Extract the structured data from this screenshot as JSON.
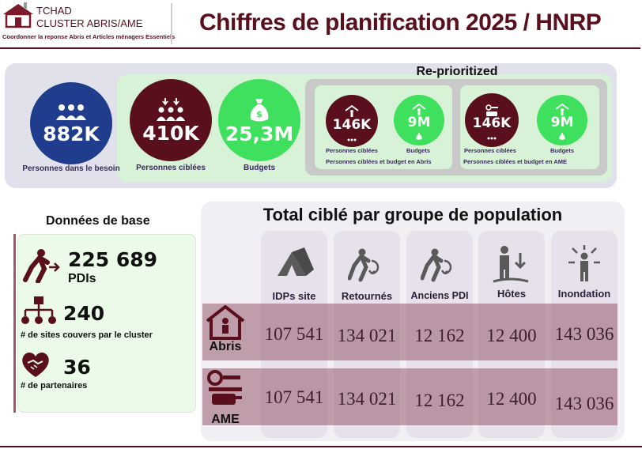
{
  "header": {
    "org_line1": "TCHAD",
    "org_line2": "CLUSTER ABRIS/AME",
    "org_tagline": "Coordonner la reponse Abris et Articles ménagers Essentiels",
    "title": "Chiffres de planification 2025 / HNRP"
  },
  "summary": {
    "in_need": {
      "value": "882K",
      "label": "Personnes dans le besoin",
      "icon": "people-group-icon"
    },
    "targeted": {
      "value": "410K",
      "label": "Personnes ciblées",
      "icon": "people-arrows-icon"
    },
    "budget": {
      "value": "25,3M",
      "label": "Budgets",
      "icon": "money-bag-icon"
    }
  },
  "reprioritized": {
    "title": "Re-prioritized",
    "abris": {
      "targeted_value": "146K",
      "targeted_label": "Personnes ciblées",
      "budget_value": "9M",
      "budget_label": "Budgets",
      "footer": "Personnes ciblées et budget en Abris"
    },
    "ame": {
      "targeted_value": "146K",
      "targeted_label": "Personnes ciblées",
      "budget_value": "9M",
      "budget_label": "Budgets",
      "footer": "Personnes ciblées et budget en AME"
    }
  },
  "base_data": {
    "title": "Données de base",
    "pdis_value": "225 689",
    "pdis_label": "PDIs",
    "sites_value": "240",
    "sites_label": "#  de sites couvers par le cluster",
    "partners_value": "36",
    "partners_label": "#  de partenaires"
  },
  "population": {
    "title": "Total ciblé par groupe de population",
    "columns": [
      "IDPs site",
      "Retournés",
      "Anciens PDI",
      "Hôtes",
      "Inondation"
    ],
    "rows": [
      {
        "label": "Abris",
        "values": [
          "107 541",
          "134 021",
          "12 162",
          "12 400",
          "143 036"
        ]
      },
      {
        "label": "AME",
        "values": [
          "107 541",
          "134 021",
          "12 162",
          "12 400",
          "143 036"
        ]
      }
    ]
  }
}
